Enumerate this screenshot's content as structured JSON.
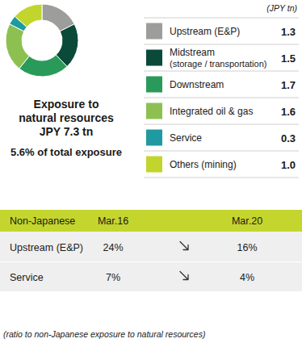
{
  "chart_data": {
    "type": "donut",
    "title": "Exposure to natural resources JPY 7.3 tn",
    "subtitle": "5.6% of total exposure",
    "annotations": [
      "(JPY tn)"
    ],
    "categories": [
      "Upstream (E&P)",
      "Midstream (storage / transportation)",
      "Downstream",
      "Integrated oil & gas",
      "Service",
      "Others (mining)"
    ],
    "values": [
      1.3,
      1.5,
      1.7,
      1.6,
      0.3,
      1.0
    ],
    "value_labels": [
      "1.3",
      "1.5",
      "1.7",
      "1.6",
      "0.3",
      "1.0"
    ],
    "colors": [
      "#9d9d9c",
      "#0b4a38",
      "#2a9a5a",
      "#8cc152",
      "#1e9aa0",
      "#c2d52c"
    ],
    "legend": "right"
  },
  "table": {
    "header": [
      "Non-Japanese",
      "Mar.16",
      "Mar.20"
    ],
    "rows": [
      [
        "Upstream (E&P)",
        "24%",
        "16%"
      ],
      [
        "Service",
        "7%",
        "4%"
      ]
    ],
    "note": "(ratio to non-Japanese exposure to natural resources)"
  }
}
